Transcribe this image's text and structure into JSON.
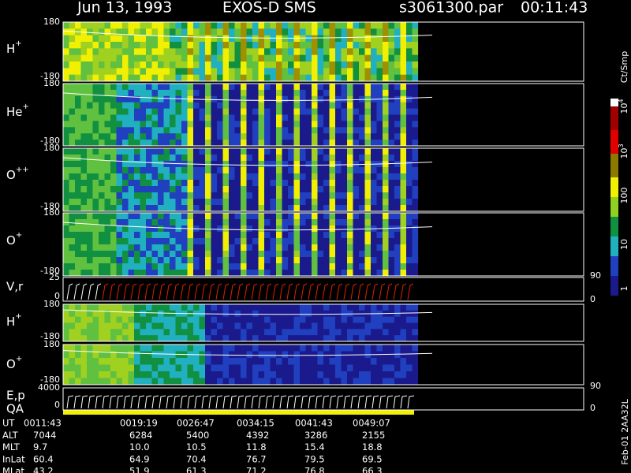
{
  "header": {
    "date": "Jun 13, 1993",
    "instrument": "EXOS-D SMS",
    "file": "s3061300.par",
    "time": "00:11:43"
  },
  "panels": [
    {
      "species": "H",
      "charge": "+",
      "top": "180",
      "bottom": "-180"
    },
    {
      "species": "He",
      "charge": "+",
      "top": "180",
      "bottom": "-180"
    },
    {
      "species": "O",
      "charge": "++",
      "top": "180",
      "bottom": "-180"
    },
    {
      "species": "O",
      "charge": "+",
      "top": "180",
      "bottom": "-180"
    },
    {
      "label": "V,r",
      "top": "25",
      "bottom": "0",
      "right_top": "90",
      "right_bottom": "0"
    },
    {
      "species": "H",
      "charge": "+",
      "top": "180",
      "bottom": "-180"
    },
    {
      "species": "O",
      "charge": "+",
      "top": "180",
      "bottom": "-180"
    },
    {
      "label": "E,p",
      "label2": "QA",
      "top": "4000",
      "bottom": "0",
      "right_top": "90",
      "right_bottom": "0"
    }
  ],
  "colorbar": {
    "unit": "Ct/Smp",
    "labels": [
      {
        "base": "10",
        "exp": "4"
      },
      {
        "base": "10",
        "exp": "3"
      },
      {
        "text": "100"
      },
      {
        "text": "10"
      },
      {
        "text": "1"
      }
    ]
  },
  "table": {
    "rows": [
      {
        "label": "UT",
        "values": [
          "0011:43",
          "0019:19",
          "0026:47",
          "0034:15",
          "0041:43",
          "0049:07"
        ]
      },
      {
        "label": "ALT",
        "values": [
          "7044",
          "6284",
          "5400",
          "4392",
          "3286",
          "2155"
        ]
      },
      {
        "label": "MLT",
        "values": [
          "9.7",
          "10.0",
          "10.5",
          "11.8",
          "15.4",
          "18.8"
        ]
      },
      {
        "label": "InLat",
        "values": [
          "60.4",
          "64.9",
          "70.4",
          "76.7",
          "79.5",
          "69.5"
        ]
      },
      {
        "label": "MLat",
        "values": [
          "43.2",
          "51.9",
          "61.3",
          "71.2",
          "76.8",
          "66.3"
        ]
      }
    ]
  },
  "footer": "Feb-01 2AA32L"
}
